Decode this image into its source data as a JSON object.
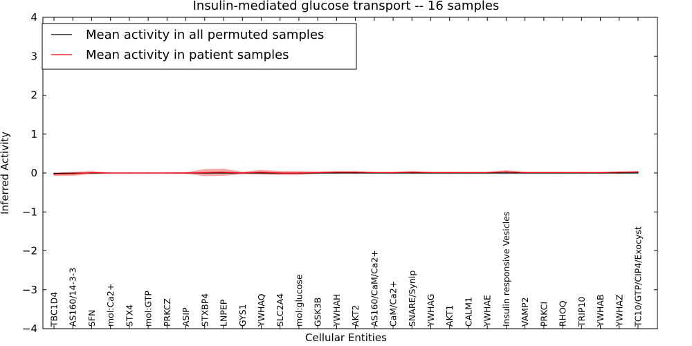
{
  "chart_data": {
    "type": "line",
    "title": "Insulin-mediated glucose transport -- 16 samples",
    "xlabel": "Cellular Entities",
    "ylabel": "Inferred Activity",
    "ylim": [
      -4,
      4
    ],
    "yticks": [
      4,
      3,
      2,
      1,
      0,
      -1,
      -2,
      -3,
      -4
    ],
    "ytick_labels": [
      "4",
      "3",
      "2",
      "1",
      "0",
      "−1",
      "−2",
      "−3",
      "−4"
    ],
    "legend_position": "top-left",
    "categories": [
      "TBC1D4",
      "AS160/14-3-3",
      "SFN",
      "mol:Ca2+",
      "STX4",
      "mol:GTP",
      "PRKCZ",
      "ASIP",
      "STXBP4",
      "LNPEP",
      "GYS1",
      "YWHAQ",
      "SLC2A4",
      "mol:glucose",
      "GSK3B",
      "YWHAH",
      "AKT2",
      "AS160/CaM/Ca2+",
      "CaM/Ca2+",
      "SNARE/Synip",
      "YWHAG",
      "AKT1",
      "CALM1",
      "YWHAE",
      "Insulin responsive Vesicles",
      "VAMP2",
      "PRKCI",
      "RHOQ",
      "TRIP10",
      "YWHAB",
      "YWHAZ",
      "TC10/GTP/CIP4/Exocyst"
    ],
    "series": [
      {
        "name": "Mean activity in all permuted samples",
        "color": "#000000",
        "values": [
          -0.01,
          -0.005,
          0.0,
          0.0,
          0.0,
          0.0,
          0.0,
          0.0,
          0.0,
          0.0,
          0.0,
          0.0,
          -0.005,
          -0.005,
          0.0,
          0.0,
          0.0,
          0.0,
          0.0,
          0.0,
          0.0,
          0.0,
          0.0,
          0.0,
          0.0,
          0.0,
          0.0,
          0.0,
          0.0,
          0.0,
          0.0,
          0.0
        ],
        "band": [
          0.02,
          0.02,
          0.02,
          0.01,
          0.01,
          0.01,
          0.01,
          0.01,
          0.02,
          0.02,
          0.02,
          0.03,
          0.03,
          0.03,
          0.02,
          0.02,
          0.02,
          0.02,
          0.02,
          0.03,
          0.03,
          0.03,
          0.03,
          0.03,
          0.04,
          0.03,
          0.03,
          0.03,
          0.02,
          0.02,
          0.02,
          0.02
        ]
      },
      {
        "name": "Mean activity in patient samples",
        "color": "#ff0000",
        "values": [
          -0.03,
          -0.02,
          0.01,
          0.0,
          0.0,
          0.0,
          0.0,
          0.0,
          0.01,
          0.02,
          0.0,
          0.02,
          0.0,
          0.0,
          0.01,
          0.02,
          0.02,
          0.01,
          0.01,
          0.02,
          0.01,
          0.01,
          0.01,
          0.01,
          0.03,
          0.01,
          0.01,
          0.01,
          0.01,
          0.01,
          0.02,
          0.03
        ],
        "band": [
          0.04,
          0.05,
          0.04,
          0.01,
          0.01,
          0.01,
          0.01,
          0.02,
          0.09,
          0.09,
          0.03,
          0.06,
          0.05,
          0.05,
          0.03,
          0.03,
          0.03,
          0.02,
          0.02,
          0.03,
          0.02,
          0.02,
          0.02,
          0.02,
          0.04,
          0.02,
          0.02,
          0.02,
          0.02,
          0.02,
          0.02,
          0.02
        ]
      }
    ]
  }
}
